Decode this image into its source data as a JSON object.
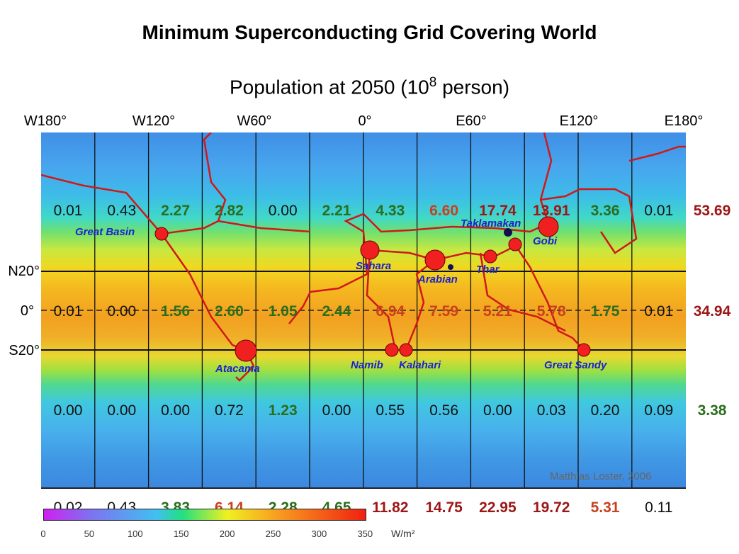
{
  "title": "Minimum Superconducting Grid Covering World",
  "subtitle_prefix": "Population at 2050 (10",
  "subtitle_exp": "8",
  "subtitle_suffix": " person)",
  "longitudes": [
    "W180°",
    "W120°",
    "W60°",
    "0°",
    "E60°",
    "E120°",
    "E180°"
  ],
  "latitudes": [
    "N20°",
    "0°",
    "S20°"
  ],
  "rows": [
    {
      "values": [
        [
          "0.01",
          "k"
        ],
        [
          "0.43",
          "k"
        ],
        [
          "2.27",
          "g"
        ],
        [
          "2.82",
          "g"
        ],
        [
          "0.00",
          "k"
        ],
        [
          "2.21",
          "g"
        ],
        [
          "4.33",
          "g"
        ],
        [
          "6.60",
          "o"
        ],
        [
          "17.74",
          "r"
        ],
        [
          "13.91",
          "r"
        ],
        [
          "3.36",
          "g"
        ],
        [
          "0.01",
          "k"
        ]
      ],
      "total": "53.69",
      "total_color": "r"
    },
    {
      "values": [
        [
          "0.01",
          "k"
        ],
        [
          "0.00",
          "k"
        ],
        [
          "1.56",
          "g"
        ],
        [
          "2.60",
          "g"
        ],
        [
          "1.05",
          "g"
        ],
        [
          "2.44",
          "g"
        ],
        [
          "6.94",
          "o"
        ],
        [
          "7.59",
          "o"
        ],
        [
          "5.21",
          "o"
        ],
        [
          "5.78",
          "o"
        ],
        [
          "1.75",
          "g"
        ],
        [
          "0.01",
          "k"
        ]
      ],
      "total": "34.94",
      "total_color": "r"
    },
    {
      "values": [
        [
          "0.00",
          "k"
        ],
        [
          "0.00",
          "k"
        ],
        [
          "0.00",
          "k"
        ],
        [
          "0.72",
          "k"
        ],
        [
          "1.23",
          "g"
        ],
        [
          "0.00",
          "k"
        ],
        [
          "0.55",
          "k"
        ],
        [
          "0.56",
          "k"
        ],
        [
          "0.00",
          "k"
        ],
        [
          "0.03",
          "k"
        ],
        [
          "0.20",
          "k"
        ],
        [
          "0.09",
          "k"
        ]
      ],
      "total": "3.38",
      "total_color": "g"
    }
  ],
  "column_totals": [
    [
      "0.02",
      "k"
    ],
    [
      "0.43",
      "k"
    ],
    [
      "3.83",
      "g"
    ],
    [
      "6.14",
      "o"
    ],
    [
      "2.28",
      "g"
    ],
    [
      "4.65",
      "g"
    ],
    [
      "11.82",
      "r"
    ],
    [
      "14.75",
      "r"
    ],
    [
      "22.95",
      "r"
    ],
    [
      "19.72",
      "r"
    ],
    [
      "5.31",
      "o"
    ],
    [
      "0.11",
      "k"
    ]
  ],
  "deserts": [
    "Great Basin",
    "Sahara",
    "Arabian",
    "Thar",
    "Taklamakan",
    "Gobi",
    "Atacama",
    "Namib",
    "Kalahari",
    "Great Sandy"
  ],
  "credit": "Matthias Loster, 2006",
  "colorbar": {
    "ticks": [
      "0",
      "50",
      "100",
      "150",
      "200",
      "250",
      "300",
      "350"
    ],
    "unit": "W/m²"
  },
  "colors": {
    "grid_line": "#d01818",
    "desert_marker": "#f02020",
    "desert_label": "#1a22d0"
  }
}
